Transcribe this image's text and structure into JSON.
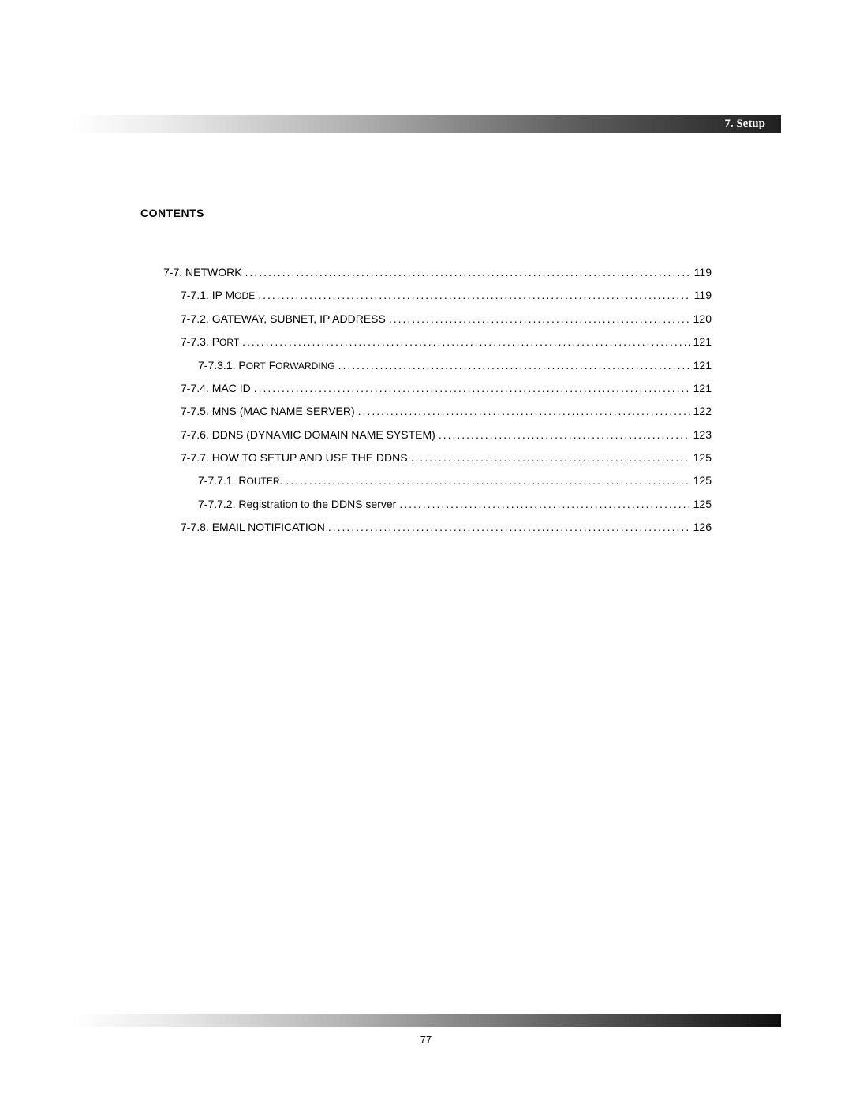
{
  "header": {
    "title": "7. Setup"
  },
  "contents_heading": "CONTENTS",
  "toc": [
    {
      "level": 1,
      "label": "7-7. NETWORK",
      "page": "119",
      "style": "upper"
    },
    {
      "level": 2,
      "label": "7-7.1. IP Mode",
      "page": "119",
      "style": "smallcaps"
    },
    {
      "level": 2,
      "label": "7-7.2. GATEWAY, SUBNET, IP ADDRESS",
      "page": "120",
      "style": "upper"
    },
    {
      "level": 2,
      "label": "7-7.3. Port",
      "page": "121",
      "style": "smallcaps"
    },
    {
      "level": 3,
      "label": "7-7.3.1. Port Forwarding",
      "page": "121",
      "style": "smallcaps"
    },
    {
      "level": 2,
      "label": "7-7.4. MAC ID",
      "page": "121",
      "style": "upper"
    },
    {
      "level": 2,
      "label": "7-7.5. MNS (MAC NAME SERVER)",
      "page": "122",
      "style": "upper"
    },
    {
      "level": 2,
      "label": "7-7.6. DDNS (DYNAMIC DOMAIN NAME SYSTEM)",
      "page": "123",
      "style": "upper"
    },
    {
      "level": 2,
      "label": "7-7.7. HOW TO SETUP AND USE THE DDNS",
      "page": "125",
      "style": "upper"
    },
    {
      "level": 3,
      "label": "7-7.7.1. Router.",
      "page": "125",
      "style": "smallcaps"
    },
    {
      "level": 3,
      "label": "7-7.7.2. Registration to the DDNS server",
      "page": "125",
      "style": "normal"
    },
    {
      "level": 2,
      "label": "7-7.8. EMAIL NOTIFICATION",
      "page": "126",
      "style": "upper"
    }
  ],
  "page_number": "77",
  "colors": {
    "background": "#ffffff",
    "text": "#000000"
  }
}
